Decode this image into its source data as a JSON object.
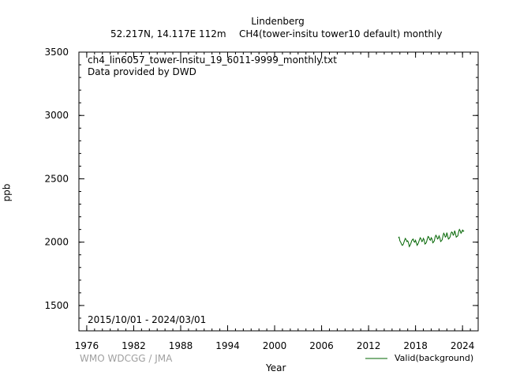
{
  "header": {
    "station": "Lindenberg",
    "location": "52.217N, 14.117E 112m",
    "species": "CH4(tower-insitu tower10 default) monthly"
  },
  "plot_info": {
    "filename": "ch4_lin6057_tower-insitu_19_6011-9999_monthly.txt",
    "provider": "Data provided by DWD",
    "period": "2015/10/01 - 2024/03/01"
  },
  "footer": {
    "credit": "WMO WDCGG / JMA"
  },
  "colors": {
    "series": "#006400",
    "credit": "#a0a0a0"
  },
  "chart_data": {
    "type": "line",
    "xlabel": "Year",
    "ylabel": "ppb",
    "xlim": [
      1975,
      2026
    ],
    "ylim": [
      1300,
      3500
    ],
    "xticks": [
      1976,
      1982,
      1988,
      1994,
      2000,
      2006,
      2012,
      2018,
      2024
    ],
    "yticks": [
      1500,
      2000,
      2500,
      3000,
      3500
    ],
    "grid": false,
    "legend_position": "bottom-right",
    "series": [
      {
        "name": "Valid(background)",
        "x": [
          2015.8,
          2015.9,
          2016.0,
          2016.1,
          2016.2,
          2016.3,
          2016.4,
          2016.5,
          2016.6,
          2016.7,
          2016.8,
          2016.9,
          2017.0,
          2017.1,
          2017.2,
          2017.3,
          2017.4,
          2017.5,
          2017.6,
          2017.7,
          2017.8,
          2017.9,
          2018.0,
          2018.1,
          2018.2,
          2018.3,
          2018.4,
          2018.5,
          2018.6,
          2018.7,
          2018.8,
          2018.9,
          2019.0,
          2019.1,
          2019.2,
          2019.3,
          2019.4,
          2019.5,
          2019.6,
          2019.7,
          2019.8,
          2019.9,
          2020.0,
          2020.1,
          2020.2,
          2020.3,
          2020.4,
          2020.5,
          2020.6,
          2020.7,
          2020.8,
          2020.9,
          2021.0,
          2021.1,
          2021.2,
          2021.3,
          2021.4,
          2021.5,
          2021.6,
          2021.7,
          2021.8,
          2021.9,
          2022.0,
          2022.1,
          2022.2,
          2022.3,
          2022.4,
          2022.5,
          2022.6,
          2022.7,
          2022.8,
          2022.9,
          2023.0,
          2023.1,
          2023.2,
          2023.3,
          2023.4,
          2023.5,
          2023.6,
          2023.7,
          2023.8,
          2023.9,
          2024.0,
          2024.1,
          2024.2
        ],
        "y": [
          2035,
          2040,
          2010,
          2000,
          1985,
          1975,
          1980,
          1995,
          2015,
          2030,
          2020,
          2005,
          2010,
          1995,
          1965,
          1975,
          1990,
          2010,
          2020,
          2025,
          2005,
          2000,
          2015,
          1995,
          1975,
          1985,
          2000,
          2020,
          2035,
          2025,
          2005,
          2010,
          2030,
          2020,
          1985,
          1990,
          2000,
          2025,
          2045,
          2040,
          2020,
          2015,
          2035,
          2025,
          1995,
          2000,
          2010,
          2040,
          2055,
          2045,
          2025,
          2030,
          2050,
          2035,
          2005,
          2010,
          2020,
          2050,
          2070,
          2060,
          2040,
          2045,
          2075,
          2050,
          2025,
          2030,
          2040,
          2065,
          2080,
          2075,
          2055,
          2060,
          2090,
          2070,
          2040,
          2045,
          2050,
          2080,
          2100,
          2090,
          2070,
          2080,
          2095,
          2085,
          2090
        ]
      }
    ]
  }
}
